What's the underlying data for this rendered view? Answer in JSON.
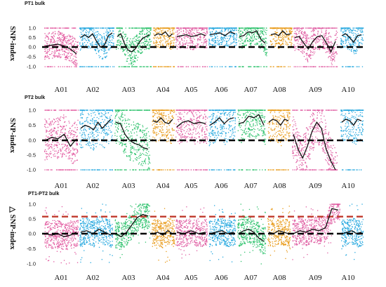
{
  "chart_data": [
    {
      "type": "scatter",
      "title": "PT1 bulk",
      "ylabel": "SNP-index",
      "xlabel": "",
      "ylim": [
        -1.05,
        1.05
      ],
      "yticks": [
        "1.0",
        "0.5",
        "0.0",
        "-0.5",
        "-1.0"
      ],
      "ytick_values": [
        1.0,
        0.5,
        0.0,
        -0.5,
        -1.0
      ],
      "categories": [
        "A01",
        "A02",
        "A03",
        "A04",
        "A05",
        "A06",
        "A07",
        "A08",
        "A09",
        "A10"
      ],
      "reference_lines": [
        {
          "y": 0.0,
          "style": "dashed",
          "color": "#000000"
        }
      ],
      "series": [
        {
          "chromosome": "A01",
          "color": "#e2579e",
          "fitted": [
            0.05,
            0.1,
            0.15,
            0.05,
            -0.1,
            -0.35
          ]
        },
        {
          "chromosome": "A02",
          "color": "#28a9df",
          "fitted": [
            0.5,
            0.65,
            0.5,
            0.7,
            0.3,
            0.0,
            0.1,
            0.6,
            0.75
          ]
        },
        {
          "chromosome": "A03",
          "color": "#2ec26d",
          "fitted": [
            0.55,
            0.7,
            0.2,
            -0.15,
            -0.25,
            -0.1,
            0.2,
            0.45,
            0.55,
            0.65
          ]
        },
        {
          "chromosome": "A04",
          "color": "#e89a18",
          "fitted": [
            0.6,
            0.7,
            0.65,
            0.8,
            0.55,
            0.7
          ]
        },
        {
          "chromosome": "A05",
          "color": "#e060a4",
          "fitted": [
            0.55,
            0.6,
            0.65,
            0.55,
            0.6,
            0.7,
            0.6
          ]
        },
        {
          "chromosome": "A06",
          "color": "#28a9df",
          "fitted": [
            0.65,
            0.7,
            0.75,
            0.6,
            0.8,
            0.7
          ]
        },
        {
          "chromosome": "A07",
          "color": "#2ec26d",
          "fitted": [
            0.55,
            0.6,
            0.8,
            0.75,
            0.85,
            0.4,
            0.2
          ]
        },
        {
          "chromosome": "A08",
          "color": "#e89a18",
          "fitted": [
            0.65,
            0.7,
            0.6,
            0.85,
            0.65,
            0.7
          ]
        },
        {
          "chromosome": "A09",
          "color": "#e060a4",
          "fitted": [
            0.5,
            0.55,
            0.2,
            -0.1,
            0.3,
            0.55,
            0.6,
            0.2,
            -0.25,
            0.3
          ]
        },
        {
          "chromosome": "A10",
          "color": "#28a9df",
          "fitted": [
            0.6,
            0.7,
            0.5,
            0.25,
            0.6,
            0.65
          ]
        }
      ]
    },
    {
      "type": "scatter",
      "title": "PT2 bulk",
      "ylabel": "SNP-index",
      "xlabel": "",
      "ylim": [
        -1.1,
        1.1
      ],
      "yticks": [
        "1.0",
        "0.5",
        "0.0",
        "-0.5",
        "-1.0"
      ],
      "ytick_values": [
        1.0,
        0.5,
        0.0,
        -0.5,
        -1.0
      ],
      "categories": [
        "A01",
        "A02",
        "A03",
        "A04",
        "A05",
        "A06",
        "A07",
        "A08",
        "A09",
        "A10"
      ],
      "reference_lines": [
        {
          "y": 0.0,
          "style": "dashed",
          "color": "#000000"
        }
      ],
      "series": [
        {
          "chromosome": "A01",
          "color": "#e2579e",
          "fitted": [
            0.0,
            0.1,
            0.05,
            0.2,
            -0.2,
            0.05
          ]
        },
        {
          "chromosome": "A02",
          "color": "#28a9df",
          "fitted": [
            0.4,
            0.5,
            0.45,
            0.35,
            0.6,
            0.4,
            0.55,
            0.7
          ]
        },
        {
          "chromosome": "A03",
          "color": "#2ec26d",
          "fitted": [
            0.6,
            0.55,
            0.2,
            0.0,
            -0.1,
            -0.15,
            -0.25,
            -0.3
          ]
        },
        {
          "chromosome": "A04",
          "color": "#e89a18",
          "fitted": [
            0.65,
            0.6,
            0.75,
            0.6,
            0.55,
            0.7
          ]
        },
        {
          "chromosome": "A05",
          "color": "#e060a4",
          "fitted": [
            0.45,
            0.6,
            0.65,
            0.55,
            0.6,
            0.55
          ]
        },
        {
          "chromosome": "A06",
          "color": "#28a9df",
          "fitted": [
            0.5,
            0.6,
            0.75,
            0.55,
            0.7,
            0.75
          ]
        },
        {
          "chromosome": "A07",
          "color": "#2ec26d",
          "fitted": [
            0.55,
            0.6,
            0.8,
            0.75,
            0.85,
            0.5
          ]
        },
        {
          "chromosome": "A08",
          "color": "#e89a18",
          "fitted": [
            0.6,
            0.7,
            0.65,
            0.5,
            0.7,
            0.65
          ]
        },
        {
          "chromosome": "A09",
          "color": "#e060a4",
          "fitted": [
            0.2,
            -0.3,
            -0.6,
            -0.2,
            0.3,
            0.6,
            0.4,
            -0.3,
            -0.7,
            -1.0
          ]
        },
        {
          "chromosome": "A10",
          "color": "#28a9df",
          "fitted": [
            0.6,
            0.7,
            0.65,
            0.5,
            0.7,
            0.65
          ]
        }
      ]
    },
    {
      "type": "scatter",
      "title": "PT1-PT2 bulk",
      "ylabel": "△ SNP-index",
      "xlabel": "",
      "ylim": [
        -1.1,
        1.1
      ],
      "yticks": [
        "1.0",
        "0.5",
        "0.0",
        "-0.5",
        "-1.0"
      ],
      "ytick_values": [
        1.0,
        0.5,
        0.0,
        -0.5,
        -1.0
      ],
      "categories": [
        "A01",
        "A02",
        "A03",
        "A04",
        "A05",
        "A06",
        "A07",
        "A08",
        "A09",
        "A10"
      ],
      "reference_lines": [
        {
          "y": 0.0,
          "style": "dashed",
          "color": "#000000"
        },
        {
          "y": 0.58,
          "style": "dashed",
          "color": "#c0392b"
        }
      ],
      "series": [
        {
          "chromosome": "A01",
          "color": "#e2579e",
          "fitted": [
            0.0,
            -0.05,
            0.0,
            -0.1,
            -0.05,
            0.05
          ]
        },
        {
          "chromosome": "A02",
          "color": "#28a9df",
          "fitted": [
            0.05,
            0.1,
            0.0,
            0.15,
            0.05,
            -0.05
          ]
        },
        {
          "chromosome": "A03",
          "color": "#2ec26d",
          "fitted": [
            0.0,
            -0.1,
            0.05,
            0.3,
            0.55,
            0.65,
            0.6
          ]
        },
        {
          "chromosome": "A04",
          "color": "#e89a18",
          "fitted": [
            0.0,
            0.05,
            -0.05,
            0.1,
            0.0
          ]
        },
        {
          "chromosome": "A05",
          "color": "#e060a4",
          "fitted": [
            0.05,
            0.0,
            0.1,
            0.0,
            0.05
          ]
        },
        {
          "chromosome": "A06",
          "color": "#28a9df",
          "fitted": [
            0.0,
            0.05,
            0.1,
            0.0,
            0.05
          ]
        },
        {
          "chromosome": "A07",
          "color": "#2ec26d",
          "fitted": [
            0.0,
            0.1,
            0.15,
            0.05,
            -0.15,
            -0.25
          ]
        },
        {
          "chromosome": "A08",
          "color": "#e89a18",
          "fitted": [
            0.05,
            0.0,
            0.1,
            0.05,
            0.0
          ]
        },
        {
          "chromosome": "A09",
          "color": "#e060a4",
          "fitted": [
            0.0,
            0.1,
            0.05,
            0.15,
            0.1,
            0.2,
            0.85,
            0.8
          ]
        },
        {
          "chromosome": "A10",
          "color": "#28a9df",
          "fitted": [
            0.0,
            0.05,
            0.1,
            0.0,
            0.05
          ]
        }
      ]
    }
  ]
}
